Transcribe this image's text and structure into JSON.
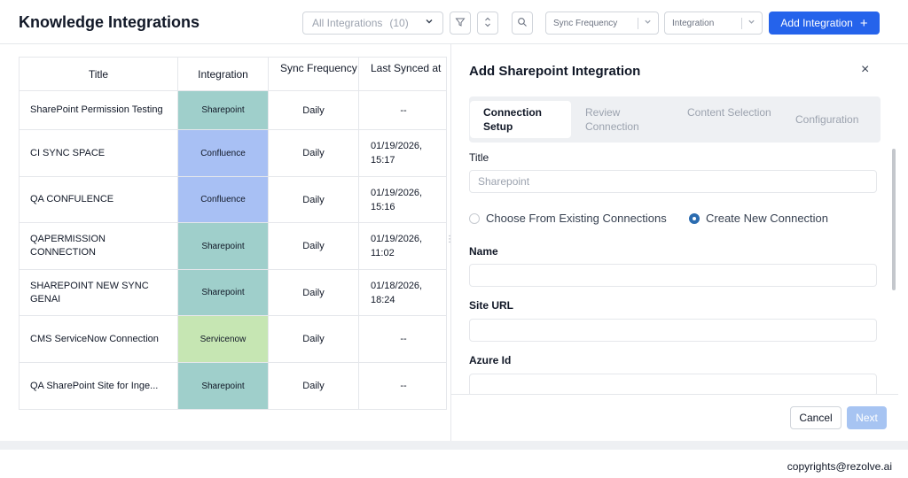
{
  "header": {
    "title": "Knowledge Integrations",
    "filter_select": {
      "value": "All Integrations",
      "count": "(10)"
    },
    "sync_frequency_placeholder": "Sync Frequency",
    "integration_placeholder": "Integration",
    "add_button": "Add Integration",
    "add_icon": "+"
  },
  "table": {
    "headers": {
      "title": "Title",
      "integration": "Integration",
      "sync": "Sync Frequency",
      "last": "Last Synced at"
    },
    "rows": [
      {
        "title": "SharePoint Permission Testing",
        "integration": "Sharepoint",
        "sync": "Daily",
        "last": "--"
      },
      {
        "title": "CI SYNC SPACE",
        "integration": "Confluence",
        "sync": "Daily",
        "last": "01/19/2026, 15:17"
      },
      {
        "title": "QA CONFULENCE",
        "integration": "Confluence",
        "sync": "Daily",
        "last": "01/19/2026, 15:16"
      },
      {
        "title": "QAPERMISSION CONNECTION",
        "integration": "Sharepoint",
        "sync": "Daily",
        "last": "01/19/2026, 11:02"
      },
      {
        "title": "SHAREPOINT NEW SYNC GENAI",
        "integration": "Sharepoint",
        "sync": "Daily",
        "last": "01/18/2026, 18:24"
      },
      {
        "title": "CMS ServiceNow Connection",
        "integration": "Servicenow",
        "sync": "Daily",
        "last": "--"
      },
      {
        "title": "QA SharePoint Site for Inge...",
        "integration": "Sharepoint",
        "sync": "Daily",
        "last": "--"
      }
    ],
    "integration_colors": {
      "Sharepoint": "#9fcfcb",
      "Confluence": "#a8c0f4",
      "Servicenow": "#c6e6b3"
    }
  },
  "panel": {
    "title": "Add Sharepoint Integration",
    "close_icon": "×",
    "steps": [
      {
        "label": "Connection Setup",
        "active": true
      },
      {
        "label": "Review Connection",
        "active": false
      },
      {
        "label": "Content Selection",
        "active": false
      },
      {
        "label": "Configuration",
        "active": false
      }
    ],
    "title_label": "Title",
    "title_placeholder": "Sharepoint",
    "radio_existing": "Choose From Existing Connections",
    "radio_new": "Create New Connection",
    "radio_selected": "new",
    "name_label": "Name",
    "site_url_label": "Site URL",
    "azure_id_label": "Azure Id",
    "cancel": "Cancel",
    "next": "Next"
  },
  "footer": {
    "copyright": "copyrights@rezolve.ai"
  }
}
